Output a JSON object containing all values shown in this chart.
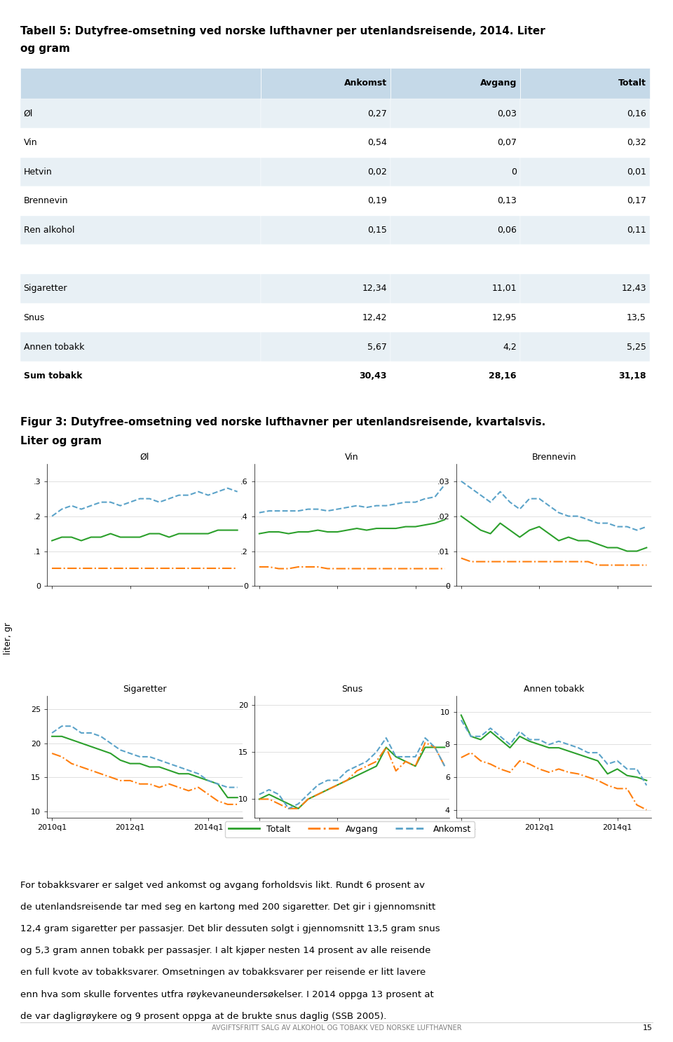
{
  "title1": "Tabell 5: Dutyfree-omsetning ved norske lufthavner per utenlandsreisende, 2014. Liter",
  "title1b": "og gram",
  "fig_title": "Figur 3: Dutyfree-omsetning ved norske lufthavner per utenlandsreisende, kvartalsvis.",
  "fig_title2": "Liter og gram",
  "table_headers": [
    "",
    "Ankomst",
    "Avgang",
    "Totalt"
  ],
  "table_rows": [
    [
      "Øl",
      "0,27",
      "0,03",
      "0,16"
    ],
    [
      "Vin",
      "0,54",
      "0,07",
      "0,32"
    ],
    [
      "Hetvin",
      "0,02",
      "0",
      "0,01"
    ],
    [
      "Brennevin",
      "0,19",
      "0,13",
      "0,17"
    ],
    [
      "Ren alkohol",
      "0,15",
      "0,06",
      "0,11"
    ],
    [
      "",
      "",
      "",
      ""
    ],
    [
      "Sigaretter",
      "12,34",
      "11,01",
      "12,43"
    ],
    [
      "Snus",
      "12,42",
      "12,95",
      "13,5"
    ],
    [
      "Annen tobakk",
      "5,67",
      "4,2",
      "5,25"
    ],
    [
      "Sum tobakk",
      "30,43",
      "28,16",
      "31,18"
    ]
  ],
  "header_bg": "#c5d9e8",
  "row_bg_even": "#e8f0f5",
  "row_bg_odd": "#ffffff",
  "text_color": "#222222",
  "body_text": [
    "For tobakksvarer er salget ved ankomst og avgang forholdsvis likt. Rundt 6 prosent av",
    "de utenlandsreisende tar med seg en kartong med 200 sigaretter. Det gir i gjennomsnitt",
    "12,4 gram sigaretter per passasjer. Det blir dessuten solgt i gjennomsnitt 13,5 gram snus",
    "og 5,3 gram annen tobakk per passasjer. I alt kjøper nesten 14 prosent av alle reisende",
    "en full kvote av tobakksvarer. Omsetningen av tobakksvarer per reisende er litt lavere",
    "enn hva som skulle forventes utfra røykevaneundersøkelser. I 2014 oppga 13 prosent at",
    "de var dagligrøykere og 9 prosent oppga at de brukte snus daglig (SSB 2005)."
  ],
  "footer_text": "AVGIFTSFRITT SALG AV ALKOHOL OG TOBAKK VED NORSKE LUFTHAVNER",
  "footer_page": "15",
  "color_totalt": "#2ca02c",
  "color_avgang": "#ff7f0e",
  "color_ankomst": "#5ba3c9",
  "panels": [
    {
      "title": "Øl",
      "ylim": [
        0,
        0.35
      ],
      "yticks": [
        0,
        0.1,
        0.2,
        0.3
      ],
      "yticklabels": [
        "0",
        ".1",
        ".2",
        ".3"
      ],
      "totalt": [
        0.13,
        0.14,
        0.14,
        0.13,
        0.14,
        0.14,
        0.15,
        0.14,
        0.14,
        0.14,
        0.15,
        0.15,
        0.14,
        0.15,
        0.15,
        0.15,
        0.15,
        0.16,
        0.16,
        0.16
      ],
      "avgang": [
        0.05,
        0.05,
        0.05,
        0.05,
        0.05,
        0.05,
        0.05,
        0.05,
        0.05,
        0.05,
        0.05,
        0.05,
        0.05,
        0.05,
        0.05,
        0.05,
        0.05,
        0.05,
        0.05,
        0.05
      ],
      "ankomst": [
        0.2,
        0.22,
        0.23,
        0.22,
        0.23,
        0.24,
        0.24,
        0.23,
        0.24,
        0.25,
        0.25,
        0.24,
        0.25,
        0.26,
        0.26,
        0.27,
        0.26,
        0.27,
        0.28,
        0.27
      ]
    },
    {
      "title": "Vin",
      "ylim": [
        0,
        0.7
      ],
      "yticks": [
        0,
        0.2,
        0.4,
        0.6
      ],
      "yticklabels": [
        "0",
        ".2",
        ".4",
        ".6"
      ],
      "totalt": [
        0.3,
        0.31,
        0.31,
        0.3,
        0.31,
        0.31,
        0.32,
        0.31,
        0.31,
        0.32,
        0.33,
        0.32,
        0.33,
        0.33,
        0.33,
        0.34,
        0.34,
        0.35,
        0.36,
        0.38
      ],
      "avgang": [
        0.11,
        0.11,
        0.1,
        0.1,
        0.11,
        0.11,
        0.11,
        0.1,
        0.1,
        0.1,
        0.1,
        0.1,
        0.1,
        0.1,
        0.1,
        0.1,
        0.1,
        0.1,
        0.1,
        0.1
      ],
      "ankomst": [
        0.42,
        0.43,
        0.43,
        0.43,
        0.43,
        0.44,
        0.44,
        0.43,
        0.44,
        0.45,
        0.46,
        0.45,
        0.46,
        0.46,
        0.47,
        0.48,
        0.48,
        0.5,
        0.51,
        0.58
      ]
    },
    {
      "title": "Brennevin",
      "ylim": [
        0,
        0.035
      ],
      "yticks": [
        0,
        0.01,
        0.02,
        0.03
      ],
      "yticklabels": [
        "0",
        ".01",
        ".02",
        ".03"
      ],
      "totalt": [
        0.02,
        0.018,
        0.016,
        0.015,
        0.018,
        0.016,
        0.014,
        0.016,
        0.017,
        0.015,
        0.013,
        0.014,
        0.013,
        0.013,
        0.012,
        0.011,
        0.011,
        0.01,
        0.01,
        0.011
      ],
      "avgang": [
        0.008,
        0.007,
        0.007,
        0.007,
        0.007,
        0.007,
        0.007,
        0.007,
        0.007,
        0.007,
        0.007,
        0.007,
        0.007,
        0.007,
        0.006,
        0.006,
        0.006,
        0.006,
        0.006,
        0.006
      ],
      "ankomst": [
        0.03,
        0.028,
        0.026,
        0.024,
        0.027,
        0.024,
        0.022,
        0.025,
        0.025,
        0.023,
        0.021,
        0.02,
        0.02,
        0.019,
        0.018,
        0.018,
        0.017,
        0.017,
        0.016,
        0.017
      ]
    },
    {
      "title": "Sigaretter",
      "ylim": [
        9,
        27
      ],
      "yticks": [
        10,
        15,
        20,
        25
      ],
      "yticklabels": [
        "10",
        "15",
        "20",
        "25"
      ],
      "totalt": [
        21.0,
        21.0,
        20.5,
        20.0,
        19.5,
        19.0,
        18.5,
        17.5,
        17.0,
        17.0,
        16.5,
        16.5,
        16.0,
        15.5,
        15.5,
        15.0,
        14.5,
        14.0,
        12.0,
        12.0
      ],
      "avgang": [
        18.5,
        18.0,
        17.0,
        16.5,
        16.0,
        15.5,
        15.0,
        14.5,
        14.5,
        14.0,
        14.0,
        13.5,
        14.0,
        13.5,
        13.0,
        13.5,
        12.5,
        11.5,
        11.0,
        11.0
      ],
      "ankomst": [
        21.5,
        22.5,
        22.5,
        21.5,
        21.5,
        21.0,
        20.0,
        19.0,
        18.5,
        18.0,
        18.0,
        17.5,
        17.0,
        16.5,
        16.0,
        15.5,
        14.5,
        14.0,
        13.5,
        13.5
      ]
    },
    {
      "title": "Snus",
      "ylim": [
        8,
        21
      ],
      "yticks": [
        10,
        15,
        20
      ],
      "yticklabels": [
        "10",
        "15",
        "20"
      ],
      "totalt": [
        10.0,
        10.5,
        10.0,
        9.5,
        9.0,
        10.0,
        10.5,
        11.0,
        11.5,
        12.0,
        12.5,
        13.0,
        13.5,
        15.5,
        14.5,
        14.0,
        13.5,
        15.5,
        15.5,
        15.5
      ],
      "avgang": [
        10.0,
        10.0,
        9.5,
        9.0,
        9.0,
        10.0,
        10.5,
        11.0,
        11.5,
        12.0,
        13.0,
        13.5,
        14.0,
        15.5,
        13.0,
        14.0,
        13.5,
        16.0,
        15.5,
        13.5
      ],
      "ankomst": [
        10.5,
        11.0,
        10.5,
        9.0,
        9.5,
        10.5,
        11.5,
        12.0,
        12.0,
        13.0,
        13.5,
        14.0,
        15.0,
        16.5,
        14.5,
        14.5,
        14.5,
        16.5,
        15.5,
        13.5
      ]
    },
    {
      "title": "Annen tobakk",
      "ylim": [
        3.5,
        11
      ],
      "yticks": [
        4,
        6,
        8,
        10
      ],
      "yticklabels": [
        "4",
        "6",
        "8",
        "10"
      ],
      "totalt": [
        9.8,
        8.5,
        8.3,
        8.8,
        8.3,
        7.8,
        8.5,
        8.2,
        8.0,
        7.8,
        7.8,
        7.6,
        7.4,
        7.2,
        7.0,
        6.2,
        6.5,
        6.1,
        6.0,
        5.8
      ],
      "avgang": [
        7.2,
        7.5,
        7.0,
        6.8,
        6.5,
        6.3,
        7.0,
        6.8,
        6.5,
        6.3,
        6.5,
        6.3,
        6.2,
        6.0,
        5.8,
        5.5,
        5.3,
        5.3,
        4.3,
        4.0
      ],
      "ankomst": [
        9.5,
        8.5,
        8.5,
        9.0,
        8.5,
        8.0,
        8.8,
        8.3,
        8.3,
        8.0,
        8.2,
        8.0,
        7.8,
        7.5,
        7.5,
        6.8,
        7.0,
        6.5,
        6.5,
        5.5
      ]
    }
  ],
  "xtick_labels_show": [
    "2010q1",
    "2012q1",
    "2014q1"
  ],
  "xtick_positions_show": [
    0,
    8,
    16
  ]
}
